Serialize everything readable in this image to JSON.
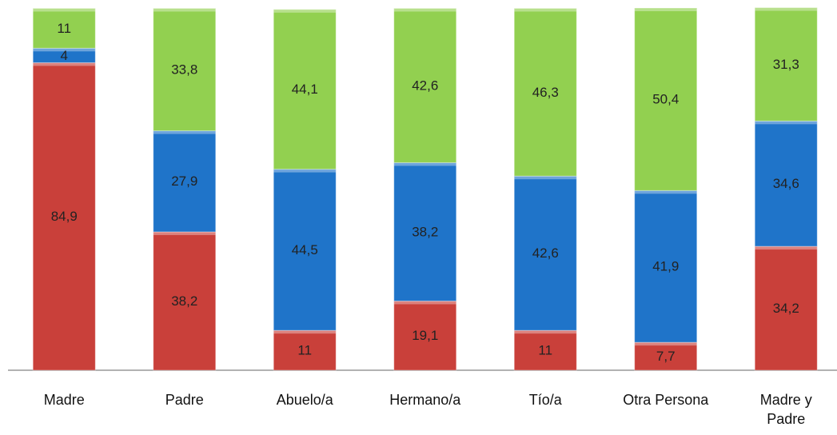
{
  "chart_data": {
    "type": "stacked_bar",
    "categories": [
      "Madre",
      "Padre",
      "Abuelo/a",
      "Hermano/a",
      "Tío/a",
      "Otra Persona",
      "Madre y Padre"
    ],
    "ylim": [
      0,
      100
    ],
    "series": [
      {
        "color": "#c9403a",
        "values": [
          84.9,
          38.2,
          11,
          19.1,
          11,
          7.7,
          34.2
        ],
        "value_labels": [
          "84,9",
          "38,2",
          "11",
          "19,1",
          "11",
          "7,7",
          "34,2"
        ]
      },
      {
        "color": "#1f74c9",
        "values": [
          4,
          27.9,
          44.5,
          38.2,
          42.6,
          41.9,
          34.6
        ],
        "value_labels": [
          "4",
          "27,9",
          "44,5",
          "38,2",
          "42,6",
          "41,9",
          "34,6"
        ]
      },
      {
        "color": "#92d050",
        "values": [
          11,
          33.8,
          44.1,
          42.6,
          46.3,
          50.4,
          31.3
        ],
        "value_labels": [
          "11",
          "33,8",
          "44,1",
          "42,6",
          "46,3",
          "50,4",
          "31,3"
        ]
      }
    ]
  }
}
